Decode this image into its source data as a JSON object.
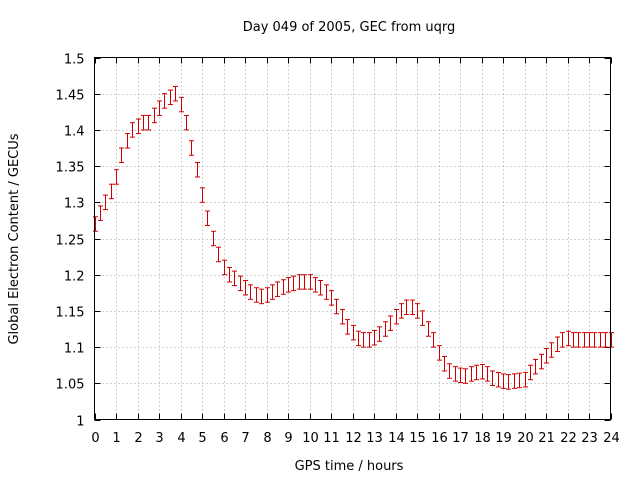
{
  "chart_data": {
    "type": "scatter",
    "title": "Day 049 of 2005, GEC from uqrg",
    "xlabel": "GPS time / hours",
    "ylabel": "Global Electron Content / GECUs",
    "xlim": [
      0,
      24
    ],
    "ylim": [
      1.0,
      1.5
    ],
    "x_ticks": [
      0,
      1,
      2,
      3,
      4,
      5,
      6,
      7,
      8,
      9,
      10,
      11,
      12,
      13,
      14,
      15,
      16,
      17,
      18,
      19,
      20,
      21,
      22,
      23,
      24
    ],
    "x_tick_labels": [
      "0",
      "1",
      "2",
      "3",
      "4",
      "5",
      "6",
      "7",
      "8",
      "9",
      "10",
      "11",
      "12",
      "13",
      "14",
      "15",
      "16",
      "17",
      "18",
      "19",
      "20",
      "21",
      "22",
      "23",
      "24"
    ],
    "y_ticks": [
      1.0,
      1.05,
      1.1,
      1.15,
      1.2,
      1.25,
      1.3,
      1.35,
      1.4,
      1.45,
      1.5
    ],
    "y_tick_labels": [
      "1",
      "1.05",
      "1.1",
      "1.15",
      "1.2",
      "1.25",
      "1.3",
      "1.35",
      "1.4",
      "1.45",
      "1.5"
    ],
    "grid": true,
    "error": 0.01,
    "color": "#cc0000",
    "x": [
      0,
      0.25,
      0.5,
      0.75,
      1,
      1.25,
      1.5,
      1.75,
      2,
      2.25,
      2.5,
      2.75,
      3,
      3.25,
      3.5,
      3.75,
      4,
      4.25,
      4.5,
      4.75,
      5,
      5.25,
      5.5,
      5.75,
      6,
      6.25,
      6.5,
      6.75,
      7,
      7.25,
      7.5,
      7.75,
      8,
      8.25,
      8.5,
      8.75,
      9,
      9.25,
      9.5,
      9.75,
      10,
      10.25,
      10.5,
      10.75,
      11,
      11.25,
      11.5,
      11.75,
      12,
      12.25,
      12.5,
      12.75,
      13,
      13.25,
      13.5,
      13.75,
      14,
      14.25,
      14.5,
      14.75,
      15,
      15.25,
      15.5,
      15.75,
      16,
      16.25,
      16.5,
      16.75,
      17,
      17.25,
      17.5,
      17.75,
      18,
      18.25,
      18.5,
      18.75,
      19,
      19.25,
      19.5,
      19.75,
      20,
      20.25,
      20.5,
      20.75,
      21,
      21.25,
      21.5,
      21.75,
      22,
      22.25,
      22.5,
      22.75,
      23,
      23.25,
      23.5,
      23.75,
      24
    ],
    "y": [
      1.27,
      1.285,
      1.3,
      1.315,
      1.335,
      1.365,
      1.385,
      1.4,
      1.405,
      1.41,
      1.41,
      1.42,
      1.43,
      1.44,
      1.445,
      1.45,
      1.435,
      1.41,
      1.375,
      1.345,
      1.31,
      1.278,
      1.25,
      1.228,
      1.21,
      1.2,
      1.195,
      1.188,
      1.182,
      1.176,
      1.172,
      1.17,
      1.172,
      1.176,
      1.18,
      1.183,
      1.186,
      1.188,
      1.19,
      1.19,
      1.19,
      1.186,
      1.182,
      1.176,
      1.168,
      1.156,
      1.142,
      1.128,
      1.12,
      1.112,
      1.11,
      1.11,
      1.113,
      1.118,
      1.125,
      1.133,
      1.142,
      1.15,
      1.155,
      1.155,
      1.15,
      1.14,
      1.125,
      1.11,
      1.092,
      1.077,
      1.067,
      1.063,
      1.061,
      1.06,
      1.063,
      1.065,
      1.066,
      1.063,
      1.057,
      1.055,
      1.053,
      1.052,
      1.053,
      1.054,
      1.055,
      1.065,
      1.073,
      1.08,
      1.088,
      1.096,
      1.104,
      1.11,
      1.112,
      1.11,
      1.11,
      1.11,
      1.11,
      1.11,
      1.11,
      1.11,
      1.11
    ]
  }
}
